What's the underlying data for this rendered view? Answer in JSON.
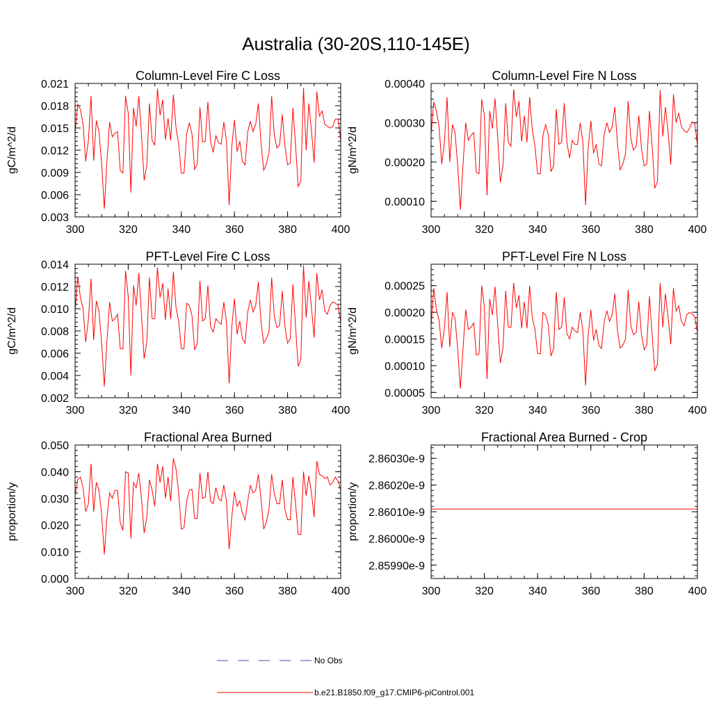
{
  "figure_title": "Australia (30-20S,110-145E)",
  "legend": {
    "items": [
      {
        "label": "No Obs",
        "color": "#4a4aa8",
        "style": "dashed"
      },
      {
        "label": "b.e21.B1850.f09_g17.CMIP6-piControl.001",
        "color": "#ff0000",
        "style": "solid"
      }
    ]
  },
  "chart_data": [
    {
      "type": "line",
      "title": "Column-Level Fire C Loss",
      "xlabel": "",
      "ylabel": "gC/m^2/d",
      "xlim": [
        300,
        400
      ],
      "ylim": [
        0.003,
        0.021
      ],
      "xticks": [
        300,
        320,
        340,
        360,
        380,
        400
      ],
      "xtick_labels": [
        "300",
        "320",
        "340",
        "360",
        "380",
        "400"
      ],
      "yticks": [
        0.003,
        0.006,
        0.009,
        0.012,
        0.015,
        0.018,
        0.021
      ],
      "ytick_labels": [
        "0.003",
        "0.006",
        "0.009",
        "0.012",
        "0.015",
        "0.018",
        "0.021"
      ],
      "x_start": 300,
      "series": [
        {
          "name": "b.e21.B1850.f09_g17.CMIP6-piControl.001",
          "color": "#ff0000",
          "values": [
            0.0143,
            0.0182,
            0.0175,
            0.0155,
            0.0105,
            0.0133,
            0.0193,
            0.0106,
            0.016,
            0.0145,
            0.0102,
            0.0041,
            0.0105,
            0.0158,
            0.0138,
            0.0143,
            0.0145,
            0.0093,
            0.0089,
            0.0193,
            0.017,
            0.0063,
            0.0177,
            0.0152,
            0.0193,
            0.014,
            0.0079,
            0.01,
            0.0183,
            0.0133,
            0.0127,
            0.0203,
            0.0167,
            0.0188,
            0.0134,
            0.0163,
            0.0133,
            0.0195,
            0.015,
            0.0128,
            0.0089,
            0.0089,
            0.0142,
            0.0157,
            0.0142,
            0.0094,
            0.0101,
            0.0178,
            0.0131,
            0.0132,
            0.0185,
            0.0132,
            0.0117,
            0.014,
            0.013,
            0.0128,
            0.0158,
            0.0132,
            0.0046,
            0.0125,
            0.0161,
            0.0118,
            0.0132,
            0.0105,
            0.01,
            0.0145,
            0.0159,
            0.0145,
            0.0155,
            0.0183,
            0.013,
            0.0093,
            0.0101,
            0.0117,
            0.0193,
            0.014,
            0.0123,
            0.0127,
            0.0168,
            0.0126,
            0.01,
            0.0103,
            0.0177,
            0.0127,
            0.0071,
            0.0078,
            0.0204,
            0.012,
            0.0183,
            0.0146,
            0.0103,
            0.0199,
            0.0166,
            0.0173,
            0.0155,
            0.0152,
            0.015,
            0.0152,
            0.0162,
            0.0162,
            0.0133
          ]
        }
      ]
    },
    {
      "type": "line",
      "title": "Column-Level Fire N Loss",
      "xlabel": "",
      "ylabel": "gN/m^2/d",
      "xlim": [
        300,
        400
      ],
      "ylim": [
        6e-05,
        0.0004
      ],
      "xticks": [
        300,
        320,
        340,
        360,
        380,
        400
      ],
      "xtick_labels": [
        "300",
        "320",
        "340",
        "360",
        "380",
        "400"
      ],
      "yticks": [
        0.0001,
        0.0002,
        0.0003,
        0.0004
      ],
      "ytick_labels": [
        "0.00010",
        "0.00020",
        "0.00030",
        "0.00040"
      ],
      "x_start": 300,
      "series": [
        {
          "name": "b.e21.B1850.f09_g17.CMIP6-piControl.001",
          "color": "#ff0000",
          "values": [
            0.00027,
            0.000353,
            0.00033,
            0.00029,
            0.000195,
            0.00025,
            0.000365,
            0.0002,
            0.000295,
            0.000275,
            0.00019,
            7.8e-05,
            0.000195,
            0.0003,
            0.000255,
            0.000268,
            0.000275,
            0.000173,
            0.00017,
            0.00036,
            0.00032,
            0.000115,
            0.00033,
            0.000285,
            0.000362,
            0.000265,
            0.000148,
            0.00019,
            0.00035,
            0.00025,
            0.00024,
            0.000385,
            0.000315,
            0.000355,
            0.000252,
            0.000318,
            0.00025,
            0.000365,
            0.000282,
            0.00024,
            0.00017,
            0.00017,
            0.000268,
            0.000295,
            0.00027,
            0.000175,
            0.00019,
            0.000335,
            0.000245,
            0.00025,
            0.00035,
            0.00025,
            0.00021,
            0.000255,
            0.000245,
            0.000245,
            0.0003,
            0.00025,
            9e-05,
            0.000235,
            0.000305,
            0.000222,
            0.000245,
            0.000195,
            0.00019,
            0.00027,
            0.0003,
            0.000275,
            0.00029,
            0.00034,
            0.000245,
            0.00018,
            0.000195,
            0.00022,
            0.000355,
            0.00026,
            0.00023,
            0.00024,
            0.000318,
            0.000235,
            0.00019,
            0.000195,
            0.00033,
            0.00024,
            0.000133,
            0.00015,
            0.000383,
            0.000265,
            0.00034,
            0.000275,
            0.000193,
            0.000372,
            0.0003,
            0.000325,
            0.00029,
            0.00028,
            0.000275,
            0.000285,
            0.000302,
            0.000298,
            0.000245
          ]
        }
      ]
    },
    {
      "type": "line",
      "title": "PFT-Level Fire C Loss",
      "xlabel": "",
      "ylabel": "gC/m^2/d",
      "xlim": [
        300,
        400
      ],
      "ylim": [
        0.002,
        0.014
      ],
      "xticks": [
        300,
        320,
        340,
        360,
        380,
        400
      ],
      "xtick_labels": [
        "300",
        "320",
        "340",
        "360",
        "380",
        "400"
      ],
      "yticks": [
        0.002,
        0.004,
        0.006,
        0.008,
        0.01,
        0.012,
        0.014
      ],
      "ytick_labels": [
        "0.002",
        "0.004",
        "0.006",
        "0.008",
        "0.010",
        "0.012",
        "0.014"
      ],
      "x_start": 300,
      "series": [
        {
          "name": "b.e21.B1850.f09_g17.CMIP6-piControl.001",
          "color": "#ff0000",
          "values": [
            0.0097,
            0.0129,
            0.011,
            0.01,
            0.007,
            0.009,
            0.0127,
            0.0072,
            0.0107,
            0.0098,
            0.0069,
            0.003,
            0.0071,
            0.0106,
            0.0089,
            0.0091,
            0.0095,
            0.0064,
            0.0064,
            0.0134,
            0.0111,
            0.004,
            0.0121,
            0.0103,
            0.0132,
            0.0094,
            0.0055,
            0.007,
            0.0128,
            0.0091,
            0.0091,
            0.0137,
            0.011,
            0.0123,
            0.009,
            0.0118,
            0.0091,
            0.0133,
            0.0101,
            0.0089,
            0.0064,
            0.0064,
            0.0105,
            0.0103,
            0.0094,
            0.0063,
            0.0069,
            0.0125,
            0.0089,
            0.0091,
            0.0121,
            0.0084,
            0.0079,
            0.0091,
            0.0088,
            0.0086,
            0.0106,
            0.0088,
            0.0033,
            0.0084,
            0.0109,
            0.0077,
            0.0089,
            0.0073,
            0.0069,
            0.0097,
            0.0108,
            0.0097,
            0.0103,
            0.0124,
            0.0088,
            0.0069,
            0.0073,
            0.0079,
            0.0128,
            0.0093,
            0.0083,
            0.0085,
            0.0116,
            0.0084,
            0.0069,
            0.0073,
            0.0122,
            0.0084,
            0.0048,
            0.0055,
            0.0139,
            0.0092,
            0.0125,
            0.0101,
            0.0074,
            0.0132,
            0.0108,
            0.0117,
            0.0098,
            0.0095,
            0.0103,
            0.0106,
            0.0105,
            0.0103,
            0.0088
          ]
        }
      ]
    },
    {
      "type": "line",
      "title": "PFT-Level Fire N Loss",
      "xlabel": "",
      "ylabel": "gN/m^2/d",
      "xlim": [
        300,
        400
      ],
      "ylim": [
        4e-05,
        0.00029
      ],
      "xticks": [
        300,
        320,
        340,
        360,
        380,
        400
      ],
      "xtick_labels": [
        "300",
        "320",
        "340",
        "360",
        "380",
        "400"
      ],
      "yticks": [
        5e-05,
        0.0001,
        0.00015,
        0.0002,
        0.00025
      ],
      "ytick_labels": [
        "0.00005",
        "0.00010",
        "0.00015",
        "0.00020",
        "0.00025"
      ],
      "x_start": 300,
      "series": [
        {
          "name": "b.e21.B1850.f09_g17.CMIP6-piControl.001",
          "color": "#ff0000",
          "values": [
            0.000175,
            0.000245,
            0.000205,
            0.000185,
            0.000133,
            0.00017,
            0.000238,
            0.000135,
            0.0002,
            0.000188,
            0.00013,
            5.7e-05,
            0.000133,
            0.000205,
            0.000168,
            0.000172,
            0.00018,
            0.00012,
            0.000122,
            0.00025,
            0.00021,
            7.5e-05,
            0.000225,
            0.000195,
            0.000248,
            0.000178,
            0.000105,
            0.000133,
            0.00024,
            0.000172,
            0.000172,
            0.000255,
            0.000208,
            0.000232,
            0.00017,
            0.00022,
            0.00017,
            0.00025,
            0.00019,
            0.000168,
            0.000123,
            0.000122,
            0.0002,
            0.000195,
            0.000177,
            0.000118,
            0.000132,
            0.000238,
            0.000168,
            0.000172,
            0.000228,
            0.00016,
            0.00015,
            0.000172,
            0.000165,
            0.000162,
            0.0002,
            0.000165,
            6.3e-05,
            0.000158,
            0.000205,
            0.000147,
            0.000168,
            0.000138,
            0.000132,
            0.000182,
            0.000203,
            0.000183,
            0.000195,
            0.000235,
            0.000165,
            0.000133,
            0.000138,
            0.00015,
            0.000242,
            0.000175,
            0.000158,
            0.000162,
            0.00022,
            0.000158,
            0.00013,
            0.000138,
            0.00023,
            0.000158,
            9e-05,
            0.000103,
            0.000255,
            0.000172,
            0.000235,
            0.00019,
            0.00014,
            0.000245,
            0.000202,
            0.000212,
            0.000183,
            0.000175,
            0.000195,
            0.0002,
            0.000197,
            0.000192,
            0.000162
          ]
        }
      ]
    },
    {
      "type": "line",
      "title": "Fractional Area Burned",
      "xlabel": "",
      "ylabel": "proportion/y",
      "xlim": [
        300,
        400
      ],
      "ylim": [
        0.0,
        0.05
      ],
      "xticks": [
        300,
        320,
        340,
        360,
        380,
        400
      ],
      "xtick_labels": [
        "300",
        "320",
        "340",
        "360",
        "380",
        "400"
      ],
      "yticks": [
        0.0,
        0.01,
        0.02,
        0.03,
        0.04,
        0.05
      ],
      "ytick_labels": [
        "0.000",
        "0.010",
        "0.020",
        "0.030",
        "0.040",
        "0.050"
      ],
      "x_start": 300,
      "series": [
        {
          "name": "b.e21.B1850.f09_g17.CMIP6-piControl.001",
          "color": "#ff0000",
          "values": [
            0.031,
            0.037,
            0.038,
            0.034,
            0.025,
            0.028,
            0.043,
            0.025,
            0.036,
            0.033,
            0.024,
            0.009,
            0.023,
            0.032,
            0.03,
            0.033,
            0.033,
            0.021,
            0.018,
            0.04,
            0.0395,
            0.015,
            0.036,
            0.034,
            0.0395,
            0.03,
            0.017,
            0.023,
            0.037,
            0.033,
            0.027,
            0.043,
            0.036,
            0.042,
            0.03,
            0.038,
            0.029,
            0.045,
            0.041,
            0.032,
            0.0185,
            0.019,
            0.029,
            0.033,
            0.0335,
            0.0225,
            0.0225,
            0.0395,
            0.03,
            0.0305,
            0.04,
            0.029,
            0.028,
            0.034,
            0.03,
            0.029,
            0.035,
            0.029,
            0.011,
            0.023,
            0.0325,
            0.027,
            0.029,
            0.0245,
            0.022,
            0.029,
            0.035,
            0.032,
            0.033,
            0.039,
            0.03,
            0.0185,
            0.021,
            0.026,
            0.039,
            0.032,
            0.028,
            0.028,
            0.037,
            0.026,
            0.022,
            0.022,
            0.038,
            0.028,
            0.0165,
            0.0165,
            0.04,
            0.031,
            0.0385,
            0.032,
            0.023,
            0.044,
            0.039,
            0.0385,
            0.0375,
            0.038,
            0.035,
            0.036,
            0.038,
            0.0365,
            0.033
          ]
        }
      ]
    },
    {
      "type": "line",
      "title": "Fractional Area Burned - Crop",
      "xlabel": "",
      "ylabel": "proportion/y",
      "xlim": [
        300,
        400
      ],
      "ylim": [
        2.85985e-09,
        2.86035e-09
      ],
      "xticks": [
        300,
        320,
        340,
        360,
        380,
        400
      ],
      "xtick_labels": [
        "300",
        "320",
        "340",
        "360",
        "380",
        "400"
      ],
      "yticks": [
        2.8599e-09,
        2.86e-09,
        2.8601e-09,
        2.8602e-09,
        2.8603e-09
      ],
      "ytick_labels": [
        "2.85990e-9",
        "2.86000e-9",
        "2.86010e-9",
        "2.86020e-9",
        "2.86030e-9"
      ],
      "x_start": 300,
      "series": [
        {
          "name": "b.e21.B1850.f09_g17.CMIP6-piControl.001",
          "color": "#ff0000",
          "constant": 2.86011e-09,
          "count": 101
        }
      ]
    }
  ]
}
